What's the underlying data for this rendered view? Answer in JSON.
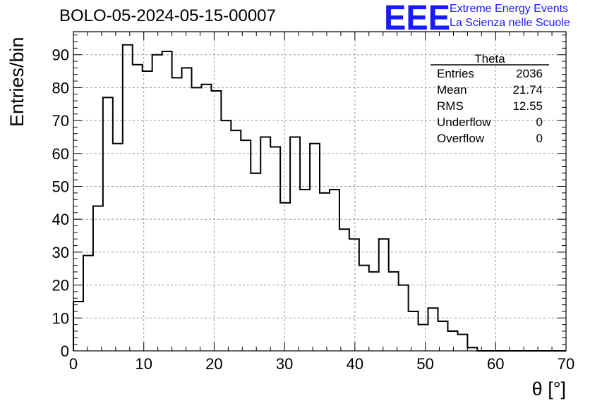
{
  "chart_data": {
    "type": "histogram",
    "title": "BOLO-05-2024-05-15-00007",
    "xlabel": "θ [°]",
    "ylabel": "Entries/bin",
    "xlim": [
      0,
      70
    ],
    "ylim": [
      0,
      97
    ],
    "xticks": [
      0,
      10,
      20,
      30,
      40,
      50,
      60,
      70
    ],
    "yticks": [
      0,
      10,
      20,
      30,
      40,
      50,
      60,
      70,
      80,
      90
    ],
    "grid": true,
    "bin_width": 1.4,
    "values": [
      15,
      29,
      44,
      77,
      63,
      93,
      87,
      85,
      90,
      91,
      83,
      86,
      80,
      81,
      79,
      70,
      67,
      64,
      54,
      65,
      62,
      45,
      65,
      49,
      63,
      48,
      49,
      37,
      34,
      26,
      24,
      34,
      24,
      20,
      12,
      8,
      13,
      9,
      6,
      5,
      1,
      0,
      0,
      0,
      0,
      0,
      0,
      0,
      0,
      0
    ],
    "stats_box": {
      "title": "Theta",
      "rows": [
        {
          "label": "Entries",
          "value": "2036"
        },
        {
          "label": "Mean",
          "value": "21.74"
        },
        {
          "label": "RMS",
          "value": "12.55"
        },
        {
          "label": "Underflow",
          "value": "0"
        },
        {
          "label": "Overflow",
          "value": "0"
        }
      ]
    }
  },
  "logo": {
    "mark": "EEE",
    "line1": "Extreme Energy Events",
    "line2": "La Scienza nelle Scuole",
    "color": "#1a1aff"
  }
}
